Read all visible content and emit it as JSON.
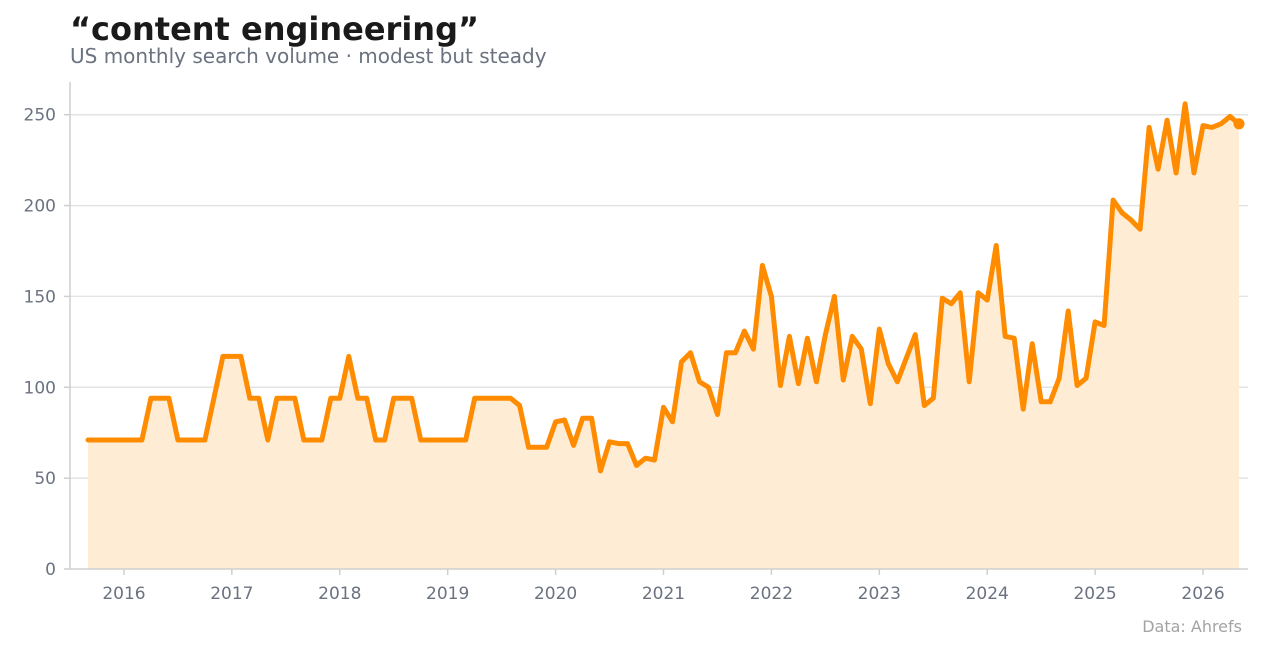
{
  "title": "“content engineering”",
  "subtitle": "US monthly search volume · modest but steady",
  "source": "Data: Ahrefs",
  "colors": {
    "line": "#ff8c00",
    "area": "#ffecd4",
    "grid": "#e3e3e3",
    "axis": "#cfcfcf",
    "text": "#6b7280"
  },
  "chart_data": {
    "type": "area",
    "title": "“content engineering”",
    "subtitle": "US monthly search volume · modest but steady",
    "xlabel": "",
    "ylabel": "",
    "ylim": [
      0,
      268
    ],
    "xlim": [
      "2015-07",
      "2026-06"
    ],
    "yticks": [
      0,
      50,
      100,
      150,
      200,
      250
    ],
    "xticks": [
      "2016",
      "2017",
      "2018",
      "2019",
      "2020",
      "2021",
      "2022",
      "2023",
      "2024",
      "2025",
      "2026"
    ],
    "grid": "y",
    "series": [
      {
        "x": [
          "2015-09",
          "2015-10",
          "2015-11",
          "2015-12",
          "2016-01",
          "2016-02",
          "2016-03",
          "2016-04",
          "2016-05",
          "2016-06",
          "2016-07",
          "2016-08",
          "2016-09",
          "2016-10",
          "2016-11",
          "2016-12",
          "2017-01",
          "2017-02",
          "2017-03",
          "2017-04",
          "2017-05",
          "2017-06",
          "2017-07",
          "2017-08",
          "2017-09",
          "2017-10",
          "2017-11",
          "2017-12",
          "2018-01",
          "2018-02",
          "2018-03",
          "2018-04",
          "2018-05",
          "2018-06",
          "2018-07",
          "2018-08",
          "2018-09",
          "2018-10",
          "2018-11",
          "2018-12",
          "2019-01",
          "2019-02",
          "2019-03",
          "2019-04",
          "2019-05",
          "2019-06",
          "2019-07",
          "2019-08",
          "2019-09",
          "2019-10",
          "2019-11",
          "2019-12",
          "2020-01",
          "2020-02",
          "2020-03",
          "2020-04",
          "2020-05",
          "2020-06",
          "2020-07",
          "2020-08",
          "2020-09",
          "2020-10",
          "2020-11",
          "2020-12",
          "2021-01",
          "2021-02",
          "2021-03",
          "2021-04",
          "2021-05",
          "2021-06",
          "2021-07",
          "2021-08",
          "2021-09",
          "2021-10",
          "2021-11",
          "2021-12",
          "2022-01",
          "2022-02",
          "2022-03",
          "2022-04",
          "2022-05",
          "2022-06",
          "2022-07",
          "2022-08",
          "2022-09",
          "2022-10",
          "2022-11",
          "2022-12",
          "2023-01",
          "2023-02",
          "2023-03",
          "2023-04",
          "2023-05",
          "2023-06",
          "2023-07",
          "2023-08",
          "2023-09",
          "2023-10",
          "2023-11",
          "2023-12",
          "2024-01",
          "2024-02",
          "2024-03",
          "2024-04",
          "2024-05",
          "2024-06",
          "2024-07",
          "2024-08",
          "2024-09",
          "2024-10",
          "2024-11",
          "2024-12",
          "2025-01",
          "2025-02",
          "2025-03",
          "2025-04",
          "2025-05",
          "2025-06",
          "2025-07",
          "2025-08",
          "2025-09",
          "2025-10",
          "2025-11",
          "2025-12",
          "2026-01",
          "2026-02",
          "2026-03",
          "2026-04",
          "2026-05"
        ],
        "values": [
          71,
          71,
          71,
          71,
          71,
          71,
          71,
          94,
          94,
          94,
          71,
          71,
          71,
          71,
          94,
          117,
          117,
          117,
          94,
          94,
          71,
          94,
          94,
          94,
          71,
          71,
          71,
          94,
          94,
          117,
          94,
          94,
          71,
          71,
          94,
          94,
          94,
          71,
          71,
          71,
          71,
          71,
          71,
          94,
          94,
          94,
          94,
          94,
          90,
          67,
          67,
          67,
          81,
          82,
          68,
          83,
          83,
          54,
          70,
          69,
          69,
          57,
          61,
          60,
          89,
          81,
          114,
          119,
          103,
          100,
          85,
          119,
          119,
          131,
          121,
          167,
          150,
          101,
          128,
          102,
          127,
          103,
          129,
          150,
          104,
          128,
          121,
          91,
          132,
          113,
          103,
          116,
          129,
          90,
          94,
          149,
          146,
          152,
          103,
          152,
          148,
          178,
          128,
          127,
          88,
          124,
          92,
          92,
          105,
          142,
          101,
          105,
          136,
          134,
          203,
          196,
          192,
          187,
          243,
          220,
          247,
          218,
          256,
          218,
          244,
          243,
          245,
          249,
          245
        ]
      }
    ]
  }
}
